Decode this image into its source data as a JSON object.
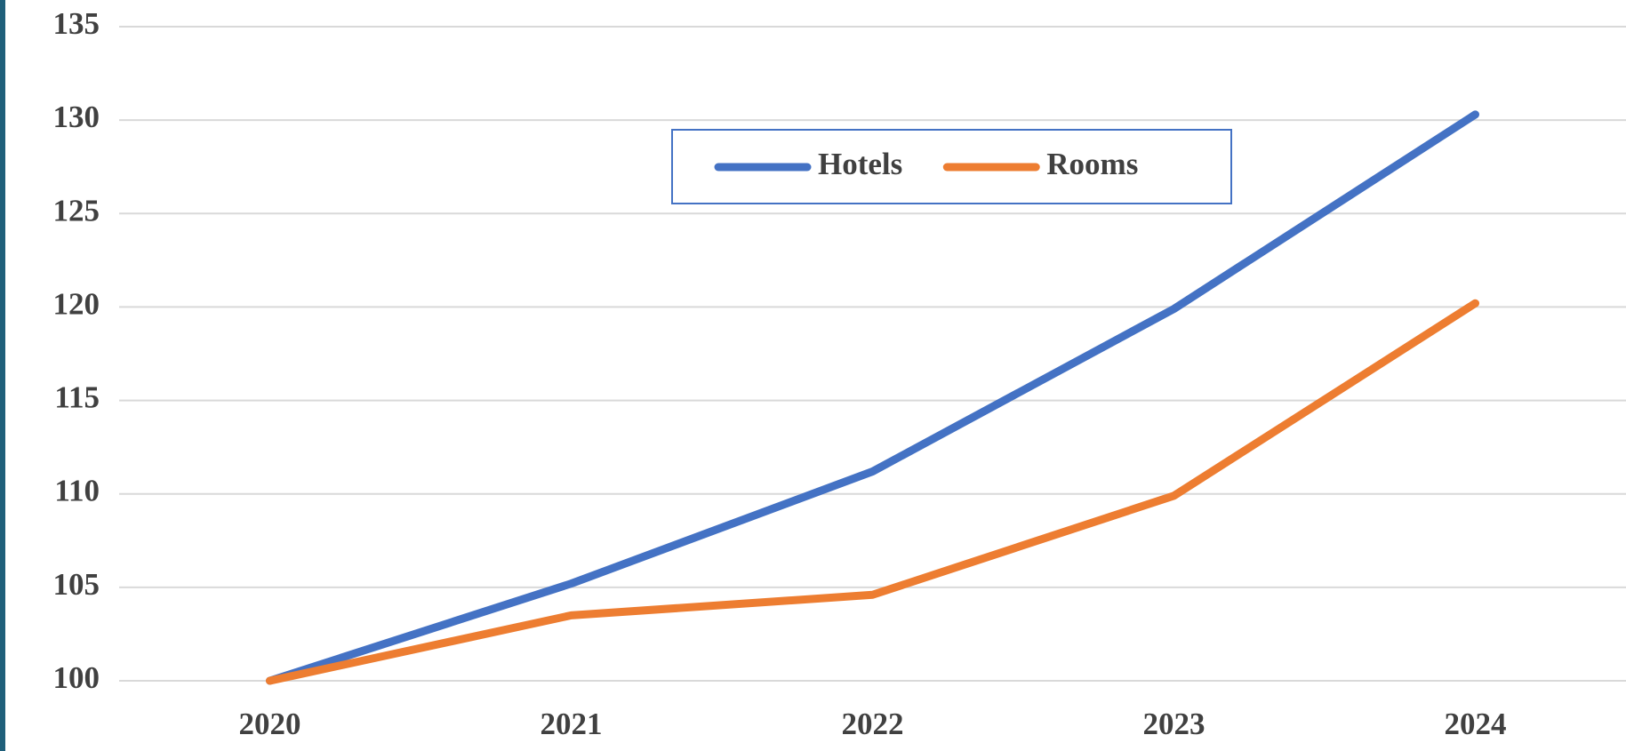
{
  "chart_data": {
    "type": "line",
    "categories": [
      "2020",
      "2021",
      "2022",
      "2023",
      "2024"
    ],
    "series": [
      {
        "name": "Hotels",
        "color": "#4472c4",
        "values": [
          100,
          105.2,
          111.2,
          119.9,
          130.3
        ]
      },
      {
        "name": "Rooms",
        "color": "#ed7d31",
        "values": [
          100,
          103.5,
          104.6,
          109.9,
          120.2
        ]
      }
    ],
    "ylim": [
      100,
      135
    ],
    "yticks": [
      100,
      105,
      110,
      115,
      120,
      125,
      130,
      135
    ],
    "grid": true,
    "legend": "top"
  }
}
